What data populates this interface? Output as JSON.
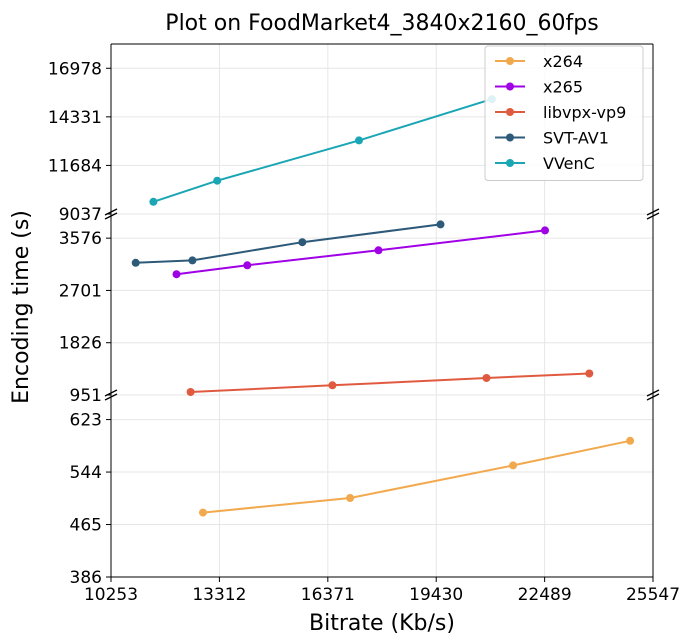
{
  "chart_data": {
    "type": "line",
    "title": "Plot on FoodMarket4_3840x2160_60fps",
    "xlabel": "Bitrate (Kb/s)",
    "ylabel": "Encoding time (s)",
    "xlim": [
      10253,
      25547
    ],
    "x_ticks": [
      10253,
      13312,
      16371,
      19430,
      22489,
      25547
    ],
    "broken_y_axis": true,
    "legend_position": "top-right",
    "grid": true,
    "panels": [
      {
        "id": "top",
        "ylim": [
          9037,
          18300
        ],
        "y_ticks": [
          9037,
          11684,
          14331,
          16978
        ],
        "series": [
          "VVenC"
        ]
      },
      {
        "id": "middle",
        "ylim": [
          951,
          3980
        ],
        "y_ticks": [
          951,
          1826,
          2701,
          3576
        ],
        "series": [
          "x265",
          "libvpx-vp9",
          "SVT-AV1"
        ]
      },
      {
        "id": "bottom",
        "ylim": [
          386,
          660
        ],
        "y_ticks": [
          386,
          465,
          544,
          623
        ],
        "series": [
          "x264"
        ]
      }
    ],
    "series": [
      {
        "name": "x264",
        "color": "#f2a94e",
        "points": [
          [
            12850,
            483
          ],
          [
            17000,
            505
          ],
          [
            21600,
            554
          ],
          [
            24900,
            591
          ]
        ]
      },
      {
        "name": "x265",
        "color": "#a000e6",
        "points": [
          [
            12100,
            2972
          ],
          [
            14100,
            3122
          ],
          [
            17800,
            3372
          ],
          [
            22500,
            3706
          ]
        ]
      },
      {
        "name": "libvpx-vp9",
        "color": "#e05a3f",
        "points": [
          [
            12500,
            1001
          ],
          [
            16500,
            1113
          ],
          [
            20850,
            1236
          ],
          [
            23750,
            1310
          ]
        ]
      },
      {
        "name": "SVT-AV1",
        "color": "#2e5a7a",
        "points": [
          [
            10950,
            3163
          ],
          [
            12550,
            3204
          ],
          [
            15650,
            3508
          ],
          [
            19550,
            3806
          ]
        ]
      },
      {
        "name": "VVenC",
        "color": "#1aa6b4",
        "points": [
          [
            11450,
            9700
          ],
          [
            13250,
            10850
          ],
          [
            17250,
            13050
          ],
          [
            21000,
            15300
          ]
        ]
      }
    ]
  }
}
